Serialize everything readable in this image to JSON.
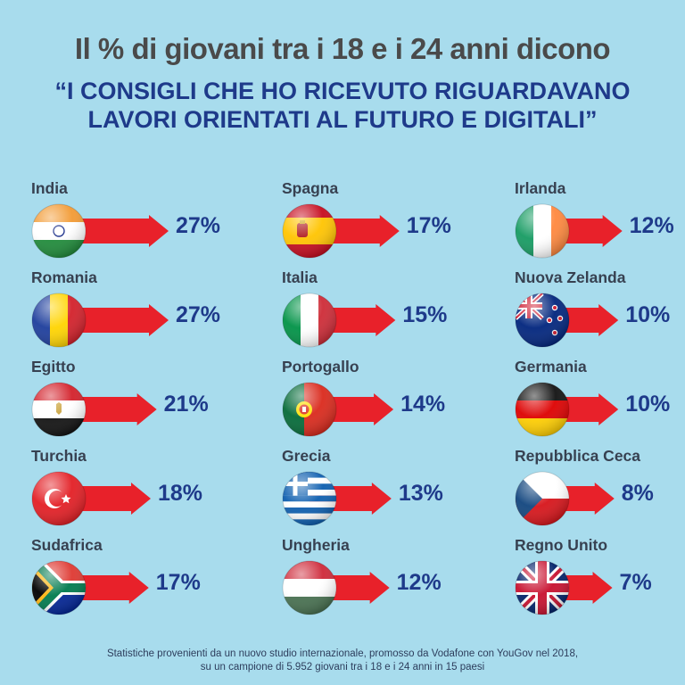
{
  "header": {
    "title_line1": "Il % di giovani tra i 18 e i 24 anni dicono",
    "title_line2": "“I CONSIGLI CHE HO RICEVUTO RIGUARDAVANO",
    "title_line3": "LAVORI ORIENTATI AL FUTURO E DIGITALI”"
  },
  "footnote": {
    "line1": "Statistiche provenienti da un nuovo studio internazionale, promosso da Vodafone con YouGov nel 2018,",
    "line2": "su un campione di 5.952 giovani tra i 18 e i 24 anni in 15 paesi"
  },
  "colors": {
    "arrow": "#e8212a",
    "percent_text": "#1e3a8a",
    "background": "#a8dced"
  },
  "chart_data": {
    "type": "bar",
    "title": "Il % di giovani tra i 18 e i 24 anni dicono “I CONSIGLI CHE HO RICEVUTO RIGUARDAVANO LAVORI ORIENTATI AL FUTURO E DIGITALI”",
    "unit": "%",
    "categories": [
      "India",
      "Romania",
      "Egitto",
      "Turchia",
      "Sudafrica",
      "Spagna",
      "Italia",
      "Portogallo",
      "Grecia",
      "Ungheria",
      "Irlanda",
      "Nuova Zelanda",
      "Germania",
      "Repubblica Ceca",
      "Regno Unito"
    ],
    "values": [
      27,
      27,
      21,
      18,
      17,
      17,
      15,
      14,
      13,
      12,
      12,
      10,
      10,
      8,
      7
    ],
    "labels": [
      "27%",
      "27%",
      "21%",
      "18%",
      "17%",
      "17%",
      "15%",
      "14%",
      "13%",
      "12%",
      "12%",
      "10%",
      "10%",
      "8%",
      "7%"
    ],
    "flags": [
      "india-flag-icon",
      "romania-flag-icon",
      "egypt-flag-icon",
      "turkey-flag-icon",
      "south-africa-flag-icon",
      "spain-flag-icon",
      "italy-flag-icon",
      "portugal-flag-icon",
      "greece-flag-icon",
      "hungary-flag-icon",
      "ireland-flag-icon",
      "new-zealand-flag-icon",
      "germany-flag-icon",
      "czech-republic-flag-icon",
      "united-kingdom-flag-icon"
    ]
  }
}
